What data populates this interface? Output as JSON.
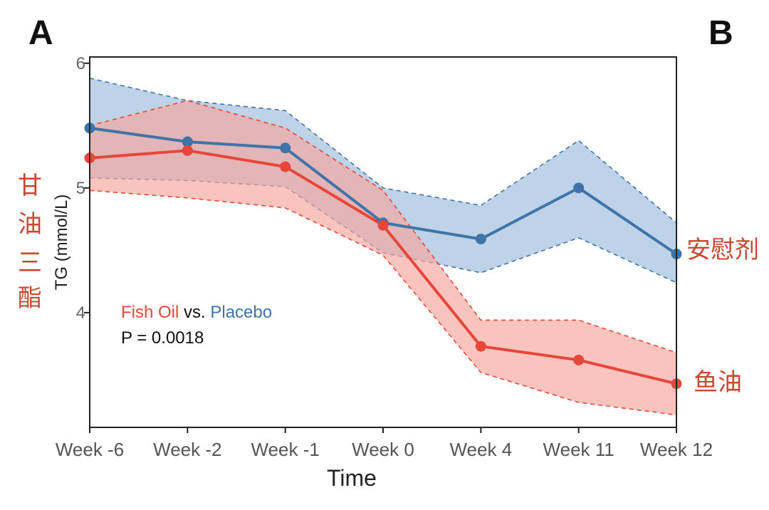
{
  "panel_labels": {
    "left": "A",
    "right": "B"
  },
  "colors": {
    "fish_oil": "#e8463b",
    "fish_oil_band": "#f7a49b",
    "placebo": "#3f74a9",
    "placebo_band": "#9cbbdc",
    "annotation": "#c8472e",
    "black": "#111111"
  },
  "chart_data": {
    "type": "line",
    "title": "",
    "xlabel": "Time",
    "ylabel": "TG (mmol/L)",
    "categories": [
      "Week -6",
      "Week -2",
      "Week -1",
      "Week 0",
      "Week 4",
      "Week 11",
      "Week 12"
    ],
    "y_ticks": [
      4,
      5,
      6
    ],
    "y_tick_labels": [
      "4",
      "5",
      "6"
    ],
    "ylim": [
      3.08,
      6.05
    ],
    "grid": false,
    "series": [
      {
        "name": "Placebo",
        "values": [
          5.48,
          5.37,
          5.32,
          4.72,
          4.59,
          5.0,
          4.47
        ],
        "lower": [
          5.08,
          5.06,
          5.01,
          4.48,
          4.32,
          4.6,
          4.24
        ],
        "upper": [
          5.88,
          5.7,
          5.62,
          5.0,
          4.86,
          5.38,
          4.72
        ]
      },
      {
        "name": "Fish Oil",
        "values": [
          5.24,
          5.3,
          5.17,
          4.7,
          3.73,
          3.62,
          3.43
        ],
        "lower": [
          4.98,
          4.92,
          4.84,
          4.46,
          3.52,
          3.28,
          3.18
        ],
        "upper": [
          5.5,
          5.7,
          5.48,
          4.98,
          3.94,
          3.94,
          3.68
        ]
      }
    ],
    "annotations": {
      "ylabel_cn": [
        "甘",
        "油",
        "三",
        "酯"
      ],
      "placebo_cn": "安慰剂",
      "fish_oil_cn": "鱼油",
      "legend_fish": "Fish Oil",
      "legend_vs": " vs. ",
      "legend_placebo": "Placebo",
      "p_value": "P = 0.0018"
    }
  }
}
